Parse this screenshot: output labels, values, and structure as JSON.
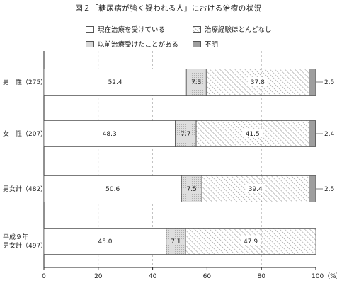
{
  "chart_data": {
    "type": "bar",
    "orientation": "horizontal",
    "stacked": true,
    "title": "図２「糖尿病が強く疑われる人」における治療の状況",
    "categories": [
      "男　性（275）",
      "女　性（207）",
      "男女計（482）",
      "平成９年\n男女計（497）"
    ],
    "series": [
      {
        "name": "現在治療を受けている",
        "values": [
          52.4,
          48.3,
          50.6,
          45.0
        ],
        "labels": [
          "52.4",
          "48.3",
          "50.6",
          "45.0"
        ],
        "color": "#ffffff",
        "pattern": "none"
      },
      {
        "name": "以前治療受けたことがある",
        "values": [
          7.3,
          7.7,
          7.5,
          7.1
        ],
        "labels": [
          "7.3",
          "7.7",
          "7.5",
          "7.1"
        ],
        "color": "#d9d9d9",
        "pattern": "dots"
      },
      {
        "name": "治療経験ほとんどなし",
        "values": [
          37.8,
          41.5,
          39.4,
          47.9
        ],
        "labels": [
          "37.8",
          "41.5",
          "39.4",
          "47.9"
        ],
        "color": "#ffffff",
        "pattern": "hatch"
      },
      {
        "name": "不明",
        "values": [
          2.5,
          2.4,
          2.5,
          0
        ],
        "labels": [
          "2.5",
          "2.4",
          "2.5",
          ""
        ],
        "color": "#9e9e9e",
        "pattern": "none"
      }
    ],
    "xlim": [
      0,
      100
    ],
    "xticks": [
      "0",
      "20",
      "40",
      "60",
      "80",
      "100（%）"
    ],
    "grid": true,
    "legend_position": "top"
  }
}
